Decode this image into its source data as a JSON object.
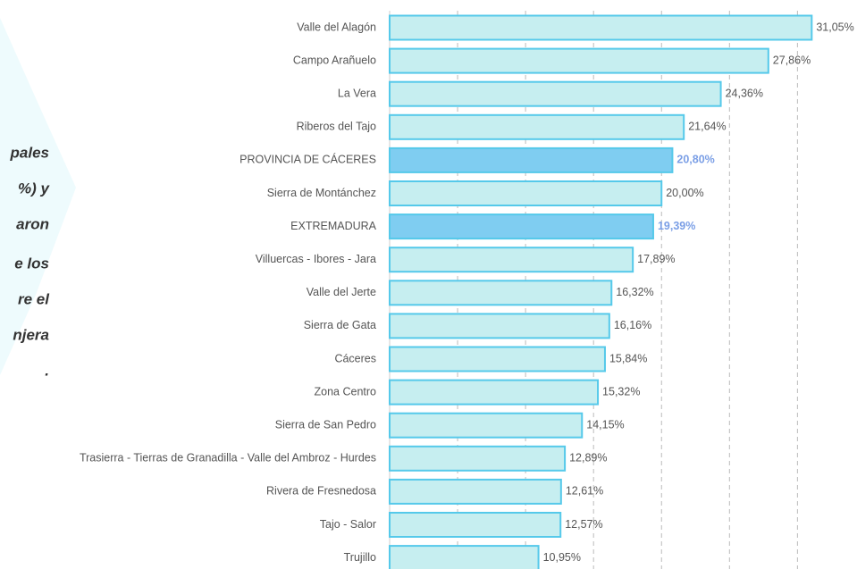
{
  "side_text": [
    "pales",
    "%) y",
    "aron",
    "e los",
    "re el",
    "njera",
    "."
  ],
  "chart_data": {
    "type": "bar",
    "orientation": "horizontal",
    "categories": [
      "Valle del Alagón",
      "Campo Arañuelo",
      "La Vera",
      "Riberos del Tajo",
      "PROVINCIA DE CÁCERES",
      "Sierra de Montánchez",
      "EXTREMADURA",
      "Villuercas - Ibores - Jara",
      "Valle del Jerte",
      "Sierra de Gata",
      "Cáceres",
      "Zona Centro",
      "Sierra de San Pedro",
      "Trasierra - Tierras de Granadilla - Valle del Ambroz - Hurdes",
      "Rivera de Fresnedosa",
      "Tajo - Salor",
      "Trujillo"
    ],
    "values": [
      31.05,
      27.86,
      24.36,
      21.64,
      20.8,
      20.0,
      19.39,
      17.89,
      16.32,
      16.16,
      15.84,
      15.32,
      14.15,
      12.89,
      12.61,
      12.57,
      10.95
    ],
    "value_labels": [
      "31,05%",
      "27,86%",
      "24,36%",
      "21,64%",
      "20,80%",
      "20,00%",
      "19,39%",
      "17,89%",
      "16,32%",
      "16,16%",
      "15,84%",
      "15,32%",
      "14,15%",
      "12,89%",
      "12,61%",
      "12,57%",
      "10,95%"
    ],
    "colors": [
      "#c6eef0",
      "#c6eef0",
      "#c6eef0",
      "#c6eef0",
      "#7fcdf1",
      "#c6eef0",
      "#7fcdf1",
      "#c6eef0",
      "#c6eef0",
      "#c6eef0",
      "#c6eef0",
      "#c6eef0",
      "#c6eef0",
      "#c6eef0",
      "#c6eef0",
      "#c6eef0",
      "#c6eef0"
    ],
    "label_colors": [
      "#555555",
      "#555555",
      "#555555",
      "#555555",
      "#7b9fe6",
      "#555555",
      "#7b9fe6",
      "#555555",
      "#555555",
      "#555555",
      "#555555",
      "#555555",
      "#555555",
      "#555555",
      "#555555",
      "#555555",
      "#555555"
    ],
    "bar_stroke": "#55c9ea",
    "xlim": [
      0,
      33
    ],
    "xticks": [
      0,
      5,
      10,
      15,
      20,
      25,
      30
    ],
    "grid": true
  }
}
